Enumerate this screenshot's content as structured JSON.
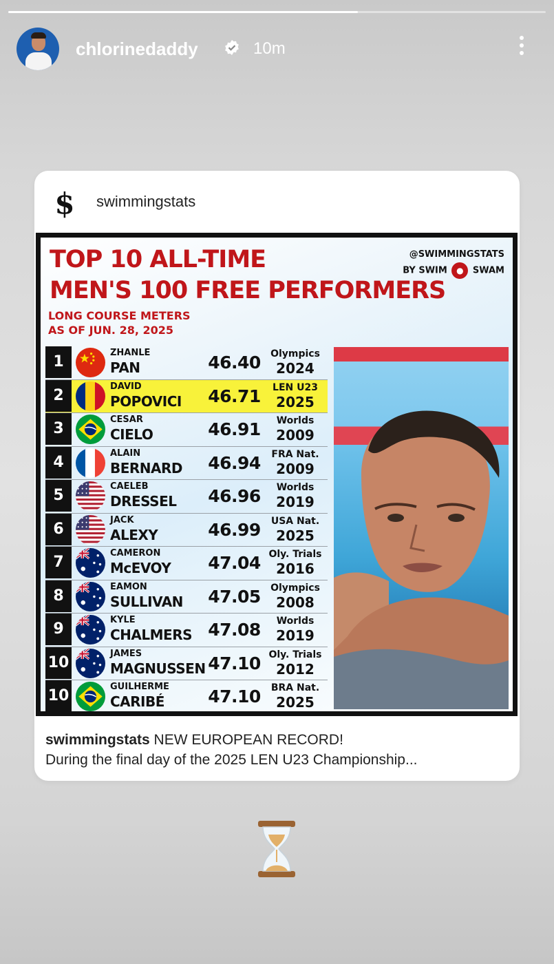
{
  "story": {
    "progress": 0.65,
    "username": "chlorinedaddy",
    "verified": true,
    "time_ago": "10m",
    "icons": {
      "avatar": "profile-photo",
      "verified": "verified-badge-icon",
      "more": "more-vertical-icon",
      "sticker": "hourglass-icon"
    }
  },
  "post": {
    "username": "swimmingstats",
    "logo": "$",
    "caption_user": "swimmingstats",
    "caption_text": " NEW EUROPEAN RECORD!",
    "caption_line2": "During the final day of the 2025 LEN U23 Championship..."
  },
  "graphic": {
    "title_line1": "TOP 10 ALL-TIME",
    "title_line2": "MEN'S 100 FREE PERFORMERS",
    "subtitle_line1": "LONG COURSE METERS",
    "subtitle_line2": "AS OF JUN. 28, 2025",
    "brand_line1": "@SWIMMINGSTATS",
    "brand_line2_a": "BY SWIM",
    "brand_line2_b": "SWAM",
    "colors": {
      "title": "#c0161a",
      "highlight": "#f8f23a"
    },
    "rows": [
      {
        "rank": "1",
        "flag": "china",
        "first": "ZHANLE",
        "last": "PAN",
        "time": "46.40",
        "meet": "Olympics",
        "year": "2024"
      },
      {
        "rank": "2",
        "flag": "romania",
        "first": "DAVID",
        "last": "POPOVICI",
        "time": "46.71",
        "meet": "LEN U23",
        "year": "2025",
        "highlight": true
      },
      {
        "rank": "3",
        "flag": "brazil",
        "first": "CESAR",
        "last": "CIELO",
        "time": "46.91",
        "meet": "Worlds",
        "year": "2009"
      },
      {
        "rank": "4",
        "flag": "france",
        "first": "ALAIN",
        "last": "BERNARD",
        "time": "46.94",
        "meet": "FRA Nat.",
        "year": "2009"
      },
      {
        "rank": "5",
        "flag": "usa",
        "first": "CAELEB",
        "last": "DRESSEL",
        "time": "46.96",
        "meet": "Worlds",
        "year": "2019"
      },
      {
        "rank": "6",
        "flag": "usa",
        "first": "JACK",
        "last": "ALEXY",
        "time": "46.99",
        "meet": "USA Nat.",
        "year": "2025"
      },
      {
        "rank": "7",
        "flag": "australia",
        "first": "CAMERON",
        "last": "McEVOY",
        "time": "47.04",
        "meet": "Oly. Trials",
        "year": "2016"
      },
      {
        "rank": "8",
        "flag": "australia",
        "first": "EAMON",
        "last": "SULLIVAN",
        "time": "47.05",
        "meet": "Olympics",
        "year": "2008"
      },
      {
        "rank": "9",
        "flag": "australia",
        "first": "KYLE",
        "last": "CHALMERS",
        "time": "47.08",
        "meet": "Worlds",
        "year": "2019"
      },
      {
        "rank": "10",
        "flag": "australia",
        "first": "JAMES",
        "last": "MAGNUSSEN",
        "time": "47.10",
        "meet": "Oly. Trials",
        "year": "2012"
      },
      {
        "rank": "10",
        "flag": "brazil",
        "first": "GUILHERME",
        "last": "CARIBÉ",
        "time": "47.10",
        "meet": "BRA Nat.",
        "year": "2025"
      }
    ]
  }
}
